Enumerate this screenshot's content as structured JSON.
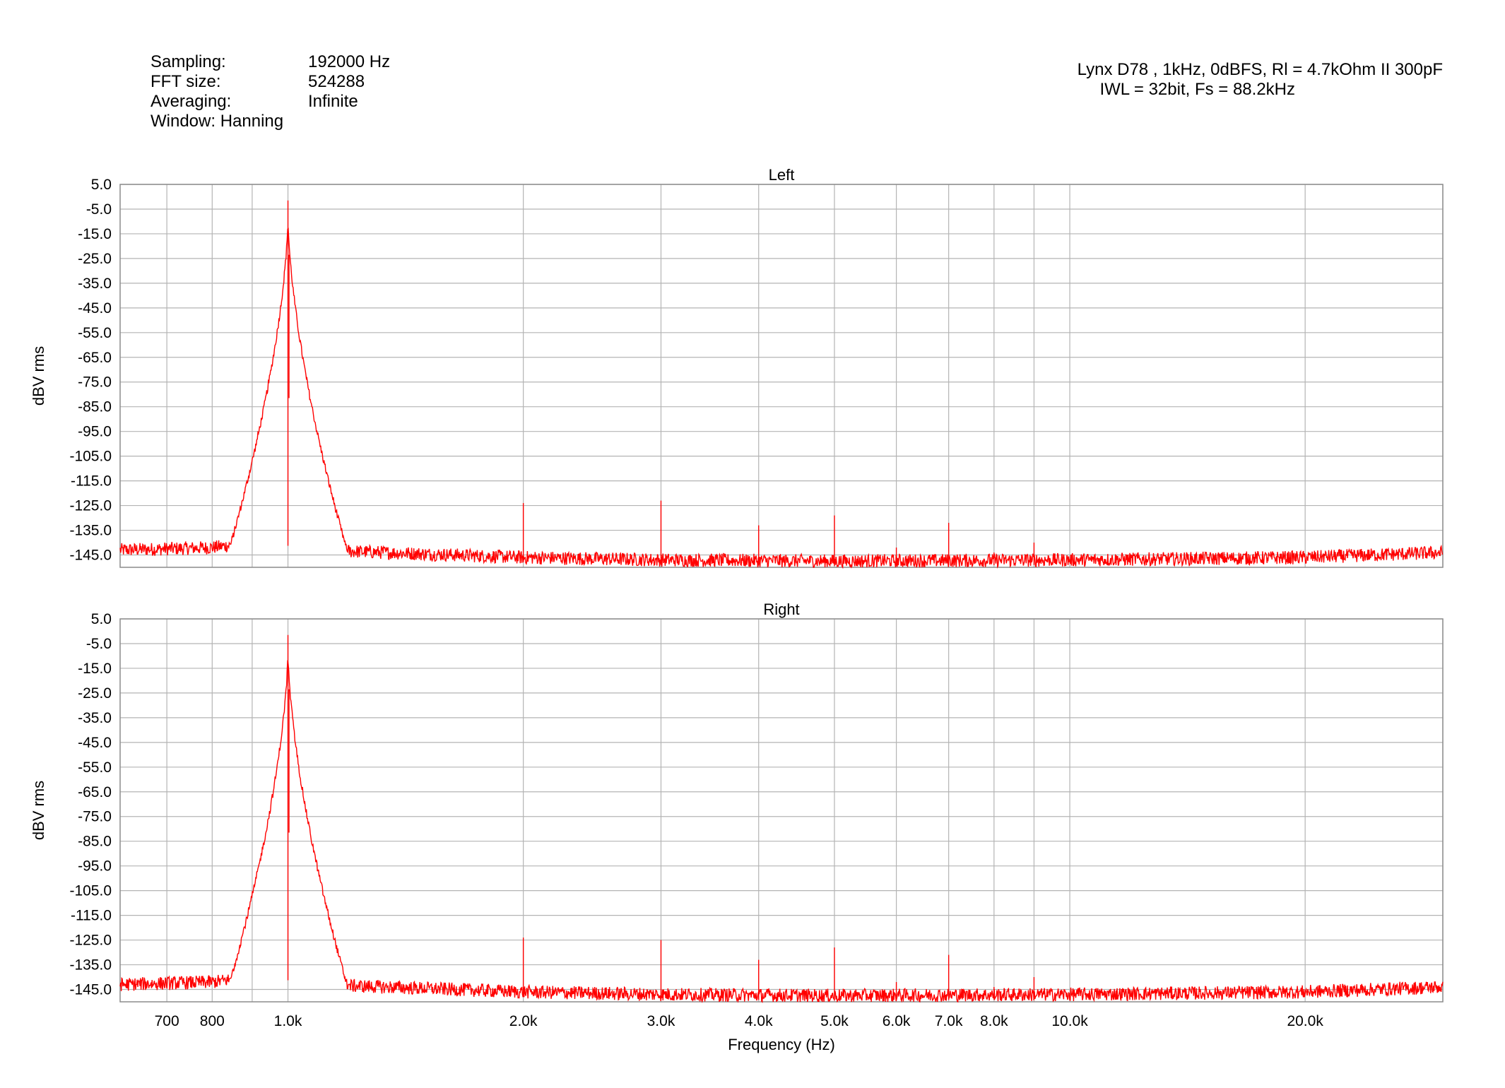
{
  "header": {
    "info_rows": [
      {
        "label": "Sampling:",
        "value": "192000 Hz"
      },
      {
        "label": "FFT size:",
        "value": "524288"
      },
      {
        "label": "Averaging:",
        "value": "Infinite"
      },
      {
        "label": "Window: Hanning",
        "value": ""
      }
    ],
    "title_line1": "Lynx D78 , 1kHz, 0dBFS, Rl = 4.7kOhm II 300pF",
    "title_line2": "IWL = 32bit, Fs = 88.2kHz"
  },
  "chart_data": [
    {
      "type": "line",
      "title": "Left",
      "ylabel": "dBV rms",
      "xlabel": "",
      "x_scale": "log",
      "xlim": [
        610,
        30000
      ],
      "ylim": [
        -150,
        5
      ],
      "y_ticks": [
        5,
        -5,
        -15,
        -25,
        -35,
        -45,
        -55,
        -65,
        -75,
        -85,
        -95,
        -105,
        -115,
        -125,
        -135,
        -145
      ],
      "y_tick_labels": [
        "5.0",
        "-5.0",
        "-15.0",
        "-25.0",
        "-35.0",
        "-45.0",
        "-55.0",
        "-65.0",
        "-75.0",
        "-85.0",
        "-95.0",
        "-105.0",
        "-115.0",
        "-125.0",
        "-135.0",
        "-145.0"
      ],
      "x_gridlines": [
        700,
        800,
        900,
        1000,
        2000,
        3000,
        4000,
        5000,
        6000,
        7000,
        8000,
        9000,
        10000,
        20000,
        30000
      ],
      "grid": true,
      "series": [
        {
          "color": "#ff0000",
          "noise_floor": [
            [
              610,
              -143
            ],
            [
              800,
              -142
            ],
            [
              900,
              -140
            ],
            [
              1200,
              -143.5
            ],
            [
              2000,
              -146
            ],
            [
              3000,
              -147
            ],
            [
              5000,
              -147.5
            ],
            [
              10000,
              -147
            ],
            [
              20000,
              -146
            ],
            [
              30000,
              -144
            ]
          ],
          "fundamental": {
            "x": 1000,
            "y": -1.5
          },
          "peaks": [
            {
              "x": 2000,
              "y": -124
            },
            {
              "x": 3000,
              "y": -123
            },
            {
              "x": 4000,
              "y": -133
            },
            {
              "x": 5000,
              "y": -129
            },
            {
              "x": 6000,
              "y": -142
            },
            {
              "x": 7000,
              "y": -132
            },
            {
              "x": 8000,
              "y": -144
            },
            {
              "x": 9000,
              "y": -140
            }
          ]
        }
      ]
    },
    {
      "type": "line",
      "title": "Right",
      "ylabel": "dBV rms",
      "xlabel": "Frequency (Hz)",
      "x_scale": "log",
      "xlim": [
        610,
        30000
      ],
      "ylim": [
        -150,
        5
      ],
      "y_ticks": [
        5,
        -5,
        -15,
        -25,
        -35,
        -45,
        -55,
        -65,
        -75,
        -85,
        -95,
        -105,
        -115,
        -125,
        -135,
        -145
      ],
      "y_tick_labels": [
        "5.0",
        "-5.0",
        "-15.0",
        "-25.0",
        "-35.0",
        "-45.0",
        "-55.0",
        "-65.0",
        "-75.0",
        "-85.0",
        "-95.0",
        "-105.0",
        "-115.0",
        "-125.0",
        "-135.0",
        "-145.0"
      ],
      "x_gridlines": [
        700,
        800,
        900,
        1000,
        2000,
        3000,
        4000,
        5000,
        6000,
        7000,
        8000,
        9000,
        10000,
        20000,
        30000
      ],
      "x_ticks": [
        700,
        800,
        1000,
        2000,
        3000,
        4000,
        5000,
        6000,
        7000,
        8000,
        10000,
        20000
      ],
      "x_tick_labels": [
        "700",
        "800",
        "1.0k",
        "2.0k",
        "3.0k",
        "4.0k",
        "5.0k",
        "6.0k",
        "7.0k",
        "8.0k",
        "10.0k",
        "20.0k"
      ],
      "grid": true,
      "series": [
        {
          "color": "#ff0000",
          "noise_floor": [
            [
              610,
              -143
            ],
            [
              800,
              -142
            ],
            [
              900,
              -140
            ],
            [
              1200,
              -143.5
            ],
            [
              2000,
              -146
            ],
            [
              3000,
              -147
            ],
            [
              5000,
              -147.5
            ],
            [
              10000,
              -147
            ],
            [
              20000,
              -146
            ],
            [
              30000,
              -144
            ]
          ],
          "fundamental": {
            "x": 1000,
            "y": -1.5
          },
          "peaks": [
            {
              "x": 2000,
              "y": -124
            },
            {
              "x": 3000,
              "y": -125
            },
            {
              "x": 4000,
              "y": -133
            },
            {
              "x": 5000,
              "y": -128
            },
            {
              "x": 6000,
              "y": -142
            },
            {
              "x": 7000,
              "y": -131
            },
            {
              "x": 8000,
              "y": -144
            },
            {
              "x": 9000,
              "y": -140
            }
          ]
        }
      ]
    }
  ]
}
